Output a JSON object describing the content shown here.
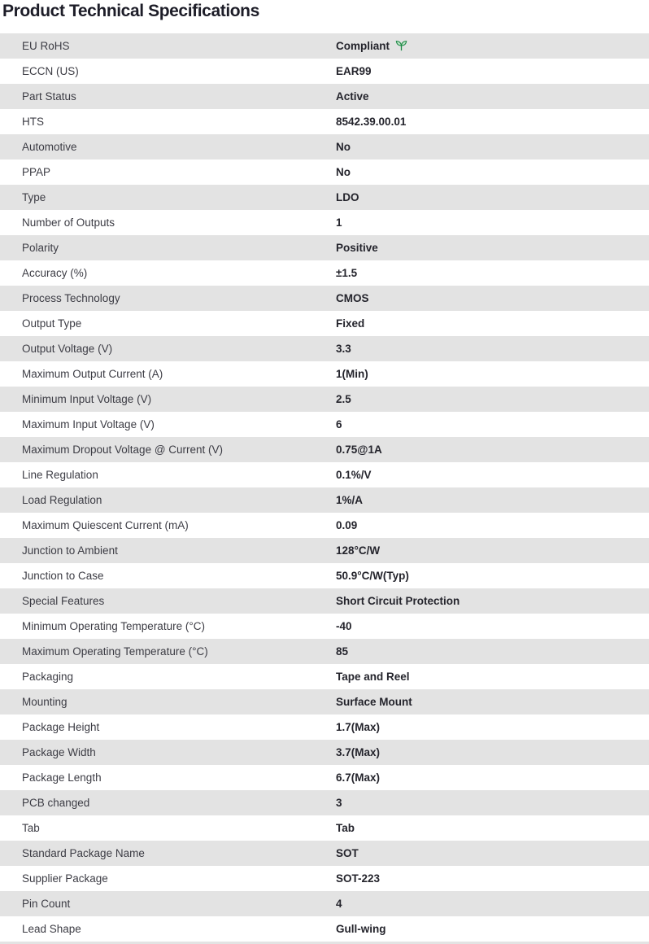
{
  "page_title": "Product Technical Specifications",
  "colors": {
    "row_alt_background": "#e3e3e3",
    "row_background": "#ffffff",
    "label_text": "#3c3c44",
    "value_text": "#24242c",
    "title_text": "#1d1d28",
    "compliance_icon_green": "#1e8a46"
  },
  "icons": {
    "rohs_compliant": "leaf-sprout-icon"
  },
  "table": {
    "rows": [
      {
        "label": "EU RoHS",
        "value": "Compliant",
        "icon": "leaf-icon"
      },
      {
        "label": "ECCN (US)",
        "value": "EAR99"
      },
      {
        "label": "Part Status",
        "value": "Active"
      },
      {
        "label": "HTS",
        "value": "8542.39.00.01"
      },
      {
        "label": "Automotive",
        "value": "No"
      },
      {
        "label": "PPAP",
        "value": "No"
      },
      {
        "label": "Type",
        "value": "LDO"
      },
      {
        "label": "Number of Outputs",
        "value": "1"
      },
      {
        "label": "Polarity",
        "value": "Positive"
      },
      {
        "label": "Accuracy (%)",
        "value": "±1.5"
      },
      {
        "label": "Process Technology",
        "value": "CMOS"
      },
      {
        "label": "Output Type",
        "value": "Fixed"
      },
      {
        "label": "Output Voltage (V)",
        "value": "3.3"
      },
      {
        "label": "Maximum Output Current (A)",
        "value": "1(Min)"
      },
      {
        "label": "Minimum Input Voltage (V)",
        "value": "2.5"
      },
      {
        "label": "Maximum Input Voltage (V)",
        "value": "6"
      },
      {
        "label": "Maximum Dropout Voltage @ Current (V)",
        "value": "0.75@1A"
      },
      {
        "label": "Line Regulation",
        "value": "0.1%/V"
      },
      {
        "label": "Load Regulation",
        "value": "1%/A"
      },
      {
        "label": "Maximum Quiescent Current (mA)",
        "value": "0.09"
      },
      {
        "label": "Junction to Ambient",
        "value": "128°C/W"
      },
      {
        "label": "Junction to Case",
        "value": "50.9°C/W(Typ)"
      },
      {
        "label": "Special Features",
        "value": "Short Circuit Protection"
      },
      {
        "label": "Minimum Operating Temperature (°C)",
        "value": "-40"
      },
      {
        "label": "Maximum Operating Temperature (°C)",
        "value": "85"
      },
      {
        "label": "Packaging",
        "value": "Tape and Reel"
      },
      {
        "label": "Mounting",
        "value": "Surface Mount"
      },
      {
        "label": "Package Height",
        "value": "1.7(Max)"
      },
      {
        "label": "Package Width",
        "value": "3.7(Max)"
      },
      {
        "label": "Package Length",
        "value": "6.7(Max)"
      },
      {
        "label": "PCB changed",
        "value": "3"
      },
      {
        "label": "Tab",
        "value": "Tab"
      },
      {
        "label": "Standard Package Name",
        "value": "SOT"
      },
      {
        "label": "Supplier Package",
        "value": "SOT-223"
      },
      {
        "label": "Pin Count",
        "value": "4"
      },
      {
        "label": "Lead Shape",
        "value": "Gull-wing"
      }
    ]
  }
}
